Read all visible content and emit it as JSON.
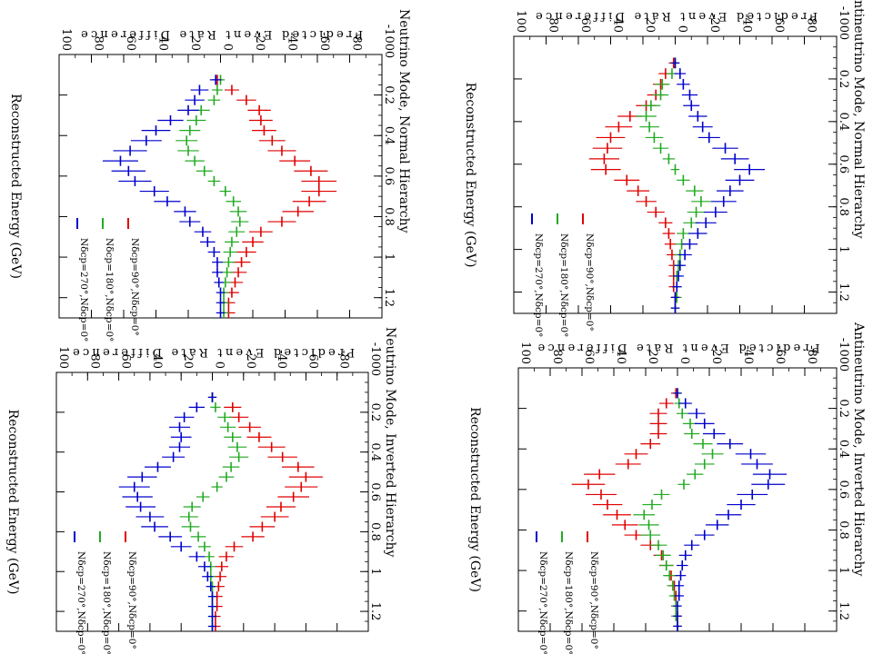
{
  "chart_data": [
    {
      "id": "nu-nh",
      "type": "scatter",
      "title": "Neutrino Mode, Normal Hierarchy",
      "xlabel": "Reconstructed Energy (GeV)",
      "ylabel": "Predicted Event Rate Difference",
      "xlim": [
        0,
        1.3
      ],
      "ylim": [
        -100,
        100
      ],
      "xticks": [
        0,
        0.2,
        0.4,
        0.6,
        0.8,
        1,
        1.2
      ],
      "yticks": [
        -100,
        -80,
        -60,
        -40,
        -20,
        0,
        20,
        40,
        60,
        80,
        100
      ],
      "x": [
        0.125,
        0.175,
        0.225,
        0.275,
        0.325,
        0.375,
        0.425,
        0.475,
        0.525,
        0.575,
        0.625,
        0.675,
        0.725,
        0.775,
        0.825,
        0.875,
        0.925,
        0.975,
        1.025,
        1.075,
        1.125,
        1.175,
        1.225,
        1.275
      ],
      "series": [
        {
          "name": "Nδcp=90°,Nδcp=0°",
          "color": "#e00000",
          "values": [
            2,
            -7,
            -16,
            -24,
            -25,
            -27,
            -32,
            -38,
            -46,
            -56,
            -61,
            -61,
            -55,
            -48,
            -38,
            -25,
            -20,
            -16,
            -13,
            -11,
            -9,
            -7,
            -5,
            -5
          ]
        },
        {
          "name": "Nδcp=180°,Nδcp=0°",
          "color": "#22aa22",
          "values": [
            0,
            2,
            4,
            12,
            15,
            19,
            21,
            20,
            16,
            10,
            4,
            -3,
            -8,
            -11,
            -12,
            -10,
            -7,
            -6,
            -5,
            -4,
            -3,
            -2,
            -2,
            -2
          ]
        },
        {
          "name": "Nδcp=270°,Nδcp=0°",
          "color": "#0000cc",
          "values": [
            3,
            13,
            16,
            20,
            31,
            40,
            46,
            56,
            62,
            57,
            53,
            41,
            33,
            22,
            19,
            11,
            8,
            4,
            2,
            2,
            1,
            0,
            0,
            0
          ]
        }
      ]
    },
    {
      "id": "anu-nh",
      "type": "scatter",
      "title": "Antineutrino Mode, Normal Hierarchy",
      "xlabel": "Reconstructed Energy (GeV)",
      "ylabel": "Predicted Event Rate Difference",
      "xlim": [
        0,
        1.3
      ],
      "ylim": [
        -100,
        100
      ],
      "xticks": [
        0,
        0.2,
        0.4,
        0.6,
        0.8,
        1,
        1.2
      ],
      "yticks": [
        -100,
        -80,
        -60,
        -40,
        -20,
        0,
        20,
        40,
        60,
        80,
        100
      ],
      "x": [
        0.125,
        0.175,
        0.225,
        0.275,
        0.325,
        0.375,
        0.425,
        0.475,
        0.525,
        0.575,
        0.625,
        0.675,
        0.725,
        0.775,
        0.825,
        0.875,
        0.925,
        0.975,
        1.025,
        1.075,
        1.125,
        1.175,
        1.225,
        1.275
      ],
      "series": [
        {
          "name": "Nδcp=90°,Nδcp=0°",
          "color": "#e00000",
          "values": [
            1,
            6,
            9,
            12,
            18,
            28,
            35,
            40,
            42,
            44,
            43,
            30,
            23,
            18,
            12,
            6,
            4,
            3,
            2,
            1,
            1,
            1,
            0,
            0
          ]
        },
        {
          "name": "Nδcp=180°,Nδcp=0°",
          "color": "#22aa22",
          "values": [
            0,
            2,
            8,
            9,
            15,
            18,
            16,
            13,
            9,
            4,
            0,
            -5,
            -12,
            -16,
            -13,
            -10,
            -5,
            -4,
            -3,
            -2,
            -1,
            -1,
            -1,
            0
          ]
        },
        {
          "name": "Nδcp=270°,Nδcp=0°",
          "color": "#0000cc",
          "values": [
            0,
            -3,
            -5,
            -9,
            -10,
            -14,
            -17,
            -21,
            -31,
            -37,
            -46,
            -40,
            -34,
            -30,
            -25,
            -19,
            -14,
            -9,
            -6,
            -3,
            -2,
            -1,
            0,
            0
          ]
        }
      ]
    },
    {
      "id": "nu-ih",
      "type": "scatter",
      "title": "Neutrino Mode, Inverted Hierarchy",
      "xlabel": "Reconstructed Energy (GeV)",
      "ylabel": "Predicted Event Rate Difference",
      "xlim": [
        0,
        1.3
      ],
      "ylim": [
        -100,
        100
      ],
      "xticks": [
        0,
        0.2,
        0.4,
        0.6,
        0.8,
        1,
        1.2
      ],
      "yticks": [
        -100,
        -80,
        -60,
        -40,
        -20,
        0,
        20,
        40,
        60,
        80,
        100
      ],
      "x": [
        0.125,
        0.175,
        0.225,
        0.275,
        0.325,
        0.375,
        0.425,
        0.475,
        0.525,
        0.575,
        0.625,
        0.675,
        0.725,
        0.775,
        0.825,
        0.875,
        0.925,
        0.975,
        1.025,
        1.075,
        1.125,
        1.175,
        1.225,
        1.275
      ],
      "series": [
        {
          "name": "Nδcp=90°,Nδcp=0°",
          "color": "#e00000",
          "values": [
            0,
            -13,
            -17,
            -24,
            -30,
            -38,
            -45,
            -55,
            -60,
            -57,
            -52,
            -44,
            -40,
            -32,
            -26,
            -14,
            -9,
            -6,
            -5,
            -4,
            -3,
            -3,
            -2,
            -2
          ]
        },
        {
          "name": "Nδcp=180°,Nδcp=0°",
          "color": "#22aa22",
          "values": [
            0,
            -2,
            -8,
            -10,
            -13,
            -16,
            -17,
            -12,
            -9,
            -3,
            6,
            13,
            15,
            14,
            9,
            5,
            2,
            1,
            1,
            0,
            0,
            0,
            0,
            0
          ]
        },
        {
          "name": "Nδcp=270°,Nδcp=0°",
          "color": "#0000cc",
          "values": [
            0,
            10,
            18,
            21,
            20,
            21,
            25,
            35,
            45,
            50,
            48,
            46,
            40,
            37,
            27,
            20,
            10,
            5,
            3,
            1,
            0,
            0,
            0,
            0
          ]
        }
      ]
    },
    {
      "id": "anu-ih",
      "type": "scatter",
      "title": "Antineutrino Mode, Inverted Hierarchy",
      "xlabel": "Reconstructed Energy (GeV)",
      "ylabel": "Predicted Event Rate Difference",
      "xlim": [
        0,
        1.3
      ],
      "ylim": [
        -100,
        100
      ],
      "xticks": [
        0,
        0.2,
        0.4,
        0.6,
        0.8,
        1,
        1.2
      ],
      "yticks": [
        -100,
        -80,
        -60,
        -40,
        -20,
        0,
        20,
        40,
        60,
        80,
        100
      ],
      "x": [
        0.125,
        0.175,
        0.225,
        0.275,
        0.325,
        0.375,
        0.425,
        0.475,
        0.525,
        0.575,
        0.625,
        0.675,
        0.725,
        0.775,
        0.825,
        0.875,
        0.925,
        0.975,
        1.025,
        1.075,
        1.125,
        1.175,
        1.225,
        1.275
      ],
      "series": [
        {
          "name": "Nδcp=90°,Nδcp=0°",
          "color": "#e00000",
          "values": [
            1,
            7,
            12,
            12,
            12,
            17,
            26,
            31,
            49,
            56,
            48,
            44,
            38,
            33,
            26,
            17,
            10,
            7,
            4,
            2,
            1,
            1,
            0,
            0
          ]
        },
        {
          "name": "Nδcp=180°,Nδcp=0°",
          "color": "#22aa22",
          "values": [
            0,
            -1,
            -3,
            -8,
            -9,
            -16,
            -22,
            -17,
            -11,
            -4,
            10,
            16,
            21,
            18,
            17,
            12,
            9,
            7,
            5,
            3,
            2,
            1,
            1,
            0
          ]
        },
        {
          "name": "Nδcp=270°,Nδcp=0°",
          "color": "#0000cc",
          "values": [
            0,
            -5,
            -12,
            -17,
            -23,
            -33,
            -46,
            -50,
            -58,
            -57,
            -47,
            -40,
            -32,
            -25,
            -17,
            -9,
            -5,
            -3,
            -2,
            -1,
            -1,
            0,
            0,
            0
          ]
        }
      ]
    }
  ]
}
